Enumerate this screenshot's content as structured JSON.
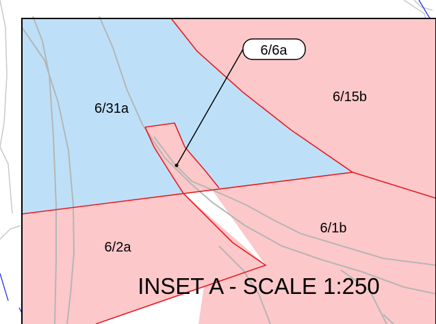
{
  "inset": {
    "title": "INSET A - SCALE 1:250"
  },
  "parcels": [
    {
      "id": "6/31a",
      "fill": "#bde0f8"
    },
    {
      "id": "6/15b",
      "fill": "#fcc8ca"
    },
    {
      "id": "6/1b",
      "fill": "#fcc8ca"
    },
    {
      "id": "6/2a",
      "fill": "#fcc8ca"
    },
    {
      "id": "6/6a",
      "fill": "#fcc8ca"
    }
  ],
  "callout": {
    "label": "6/6a"
  },
  "colors": {
    "boundary_line": "#e8191f",
    "road_line": "#b5b5b5",
    "frame": "#000000",
    "outer_blue_line": "#1a2ee6"
  }
}
